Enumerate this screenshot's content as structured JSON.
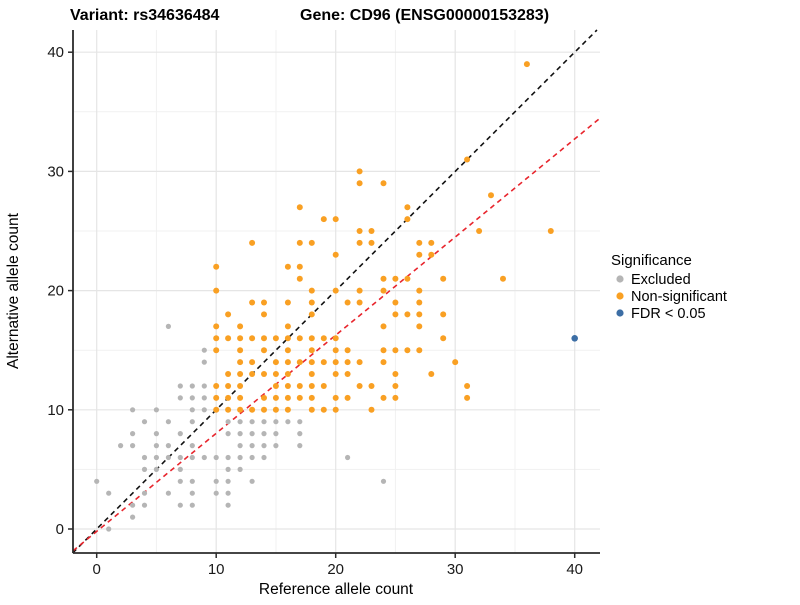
{
  "header": {
    "variant_title": "Variant: rs34636484",
    "gene_title": "Gene: CD96 (ENSG00000153283)"
  },
  "axes": {
    "x": {
      "label": "Reference allele count",
      "ticks": [
        0,
        10,
        20,
        30,
        40
      ]
    },
    "y": {
      "label": "Alternative allele count",
      "ticks": [
        0,
        10,
        20,
        30,
        40
      ]
    }
  },
  "legend": {
    "title": "Significance",
    "items": [
      {
        "label": "Excluded",
        "color": "#b5b5b5"
      },
      {
        "label": "Non-significant",
        "color": "#f9a023"
      },
      {
        "label": "FDR < 0.05",
        "color": "#3c6ea5"
      }
    ]
  },
  "chart_data": {
    "type": "scatter",
    "title": "Variant: rs34636484 / Gene: CD96 (ENSG00000153283)",
    "xlabel": "Reference allele count",
    "ylabel": "Alternative allele count",
    "xlim": [
      -2,
      42.1
    ],
    "ylim": [
      -2,
      41.9
    ],
    "grid": true,
    "minor_grid": [
      5,
      15,
      25,
      35
    ],
    "legend_position": "right",
    "series": [
      {
        "name": "Excluded",
        "color": "#b5b5b5",
        "points": [
          [
            6,
            17
          ],
          [
            9,
            15
          ],
          [
            9,
            14
          ],
          [
            7,
            12
          ],
          [
            8,
            12
          ],
          [
            9,
            12
          ],
          [
            7,
            11
          ],
          [
            8,
            11
          ],
          [
            9,
            11
          ],
          [
            3,
            10
          ],
          [
            5,
            10
          ],
          [
            8,
            10
          ],
          [
            9,
            10
          ],
          [
            4,
            9
          ],
          [
            6,
            9
          ],
          [
            8,
            9
          ],
          [
            11,
            9
          ],
          [
            12,
            9
          ],
          [
            13,
            9
          ],
          [
            14,
            9
          ],
          [
            15,
            9
          ],
          [
            16,
            9
          ],
          [
            17,
            9
          ],
          [
            3,
            8
          ],
          [
            5,
            8
          ],
          [
            7,
            8
          ],
          [
            11,
            8
          ],
          [
            12,
            8
          ],
          [
            13,
            8
          ],
          [
            14,
            8
          ],
          [
            15,
            8
          ],
          [
            17,
            8
          ],
          [
            2,
            7
          ],
          [
            3,
            7
          ],
          [
            5,
            7
          ],
          [
            6,
            7
          ],
          [
            8,
            7
          ],
          [
            12,
            7
          ],
          [
            13,
            7
          ],
          [
            14,
            7
          ],
          [
            15,
            7
          ],
          [
            17,
            7
          ],
          [
            4,
            6
          ],
          [
            5,
            6
          ],
          [
            6,
            6
          ],
          [
            7,
            6
          ],
          [
            8,
            6
          ],
          [
            9,
            6
          ],
          [
            10,
            6
          ],
          [
            11,
            6
          ],
          [
            12,
            6
          ],
          [
            13,
            6
          ],
          [
            14,
            6
          ],
          [
            21,
            6
          ],
          [
            4,
            5
          ],
          [
            5,
            5
          ],
          [
            7,
            5
          ],
          [
            11,
            5
          ],
          [
            12,
            5
          ],
          [
            0,
            4
          ],
          [
            7,
            4
          ],
          [
            8,
            4
          ],
          [
            10,
            4
          ],
          [
            11,
            4
          ],
          [
            13,
            4
          ],
          [
            24,
            4
          ],
          [
            1,
            3
          ],
          [
            4,
            3
          ],
          [
            6,
            3
          ],
          [
            8,
            3
          ],
          [
            10,
            3
          ],
          [
            11,
            3
          ],
          [
            3,
            2
          ],
          [
            4,
            2
          ],
          [
            7,
            2
          ],
          [
            8,
            2
          ],
          [
            11,
            2
          ],
          [
            3,
            1
          ],
          [
            1,
            0
          ]
        ]
      },
      {
        "name": "Non-significant",
        "color": "#f9a023",
        "points": [
          [
            36,
            39
          ],
          [
            31,
            31
          ],
          [
            22,
            30
          ],
          [
            22,
            29
          ],
          [
            24,
            29
          ],
          [
            33,
            28
          ],
          [
            17,
            27
          ],
          [
            26,
            27
          ],
          [
            19,
            26
          ],
          [
            20,
            26
          ],
          [
            26,
            26
          ],
          [
            22,
            25
          ],
          [
            23,
            25
          ],
          [
            32,
            25
          ],
          [
            38,
            25
          ],
          [
            13,
            24
          ],
          [
            17,
            24
          ],
          [
            18,
            24
          ],
          [
            22,
            24
          ],
          [
            23,
            24
          ],
          [
            27,
            24
          ],
          [
            28,
            24
          ],
          [
            20,
            23
          ],
          [
            27,
            23
          ],
          [
            28,
            23
          ],
          [
            10,
            22
          ],
          [
            16,
            22
          ],
          [
            17,
            22
          ],
          [
            17,
            21
          ],
          [
            24,
            21
          ],
          [
            25,
            21
          ],
          [
            26,
            21
          ],
          [
            29,
            21
          ],
          [
            34,
            21
          ],
          [
            10,
            20
          ],
          [
            18,
            20
          ],
          [
            20,
            20
          ],
          [
            22,
            20
          ],
          [
            24,
            20
          ],
          [
            27,
            20
          ],
          [
            13,
            19
          ],
          [
            14,
            19
          ],
          [
            16,
            19
          ],
          [
            18,
            19
          ],
          [
            21,
            19
          ],
          [
            22,
            19
          ],
          [
            25,
            19
          ],
          [
            27,
            19
          ],
          [
            11,
            18
          ],
          [
            14,
            18
          ],
          [
            18,
            18
          ],
          [
            25,
            18
          ],
          [
            26,
            18
          ],
          [
            27,
            18
          ],
          [
            29,
            18
          ],
          [
            10,
            17
          ],
          [
            12,
            17
          ],
          [
            16,
            17
          ],
          [
            24,
            17
          ],
          [
            27,
            17
          ],
          [
            10,
            16
          ],
          [
            11,
            16
          ],
          [
            12,
            16
          ],
          [
            13,
            16
          ],
          [
            14,
            16
          ],
          [
            15,
            16
          ],
          [
            16,
            16
          ],
          [
            17,
            16
          ],
          [
            18,
            16
          ],
          [
            19,
            16
          ],
          [
            20,
            16
          ],
          [
            29,
            16
          ],
          [
            10,
            15
          ],
          [
            12,
            15
          ],
          [
            14,
            15
          ],
          [
            16,
            15
          ],
          [
            18,
            15
          ],
          [
            20,
            15
          ],
          [
            21,
            15
          ],
          [
            24,
            15
          ],
          [
            25,
            15
          ],
          [
            26,
            15
          ],
          [
            27,
            15
          ],
          [
            12,
            14
          ],
          [
            13,
            14
          ],
          [
            15,
            14
          ],
          [
            16,
            14
          ],
          [
            17,
            14
          ],
          [
            18,
            14
          ],
          [
            19,
            14
          ],
          [
            20,
            14
          ],
          [
            21,
            14
          ],
          [
            22,
            14
          ],
          [
            24,
            14
          ],
          [
            30,
            14
          ],
          [
            11,
            13
          ],
          [
            12,
            13
          ],
          [
            13,
            13
          ],
          [
            14,
            13
          ],
          [
            15,
            13
          ],
          [
            16,
            13
          ],
          [
            18,
            13
          ],
          [
            20,
            13
          ],
          [
            21,
            13
          ],
          [
            25,
            13
          ],
          [
            28,
            13
          ],
          [
            10,
            12
          ],
          [
            11,
            12
          ],
          [
            12,
            12
          ],
          [
            15,
            12
          ],
          [
            16,
            12
          ],
          [
            17,
            12
          ],
          [
            18,
            12
          ],
          [
            19,
            12
          ],
          [
            22,
            12
          ],
          [
            23,
            12
          ],
          [
            25,
            12
          ],
          [
            31,
            12
          ],
          [
            10,
            11
          ],
          [
            11,
            11
          ],
          [
            12,
            11
          ],
          [
            14,
            11
          ],
          [
            15,
            11
          ],
          [
            16,
            11
          ],
          [
            17,
            11
          ],
          [
            18,
            11
          ],
          [
            20,
            11
          ],
          [
            21,
            11
          ],
          [
            24,
            11
          ],
          [
            25,
            11
          ],
          [
            31,
            11
          ],
          [
            10,
            10
          ],
          [
            11,
            10
          ],
          [
            12,
            10
          ],
          [
            13,
            10
          ],
          [
            14,
            10
          ],
          [
            15,
            10
          ],
          [
            16,
            10
          ],
          [
            18,
            10
          ],
          [
            19,
            10
          ],
          [
            20,
            10
          ],
          [
            23,
            10
          ]
        ]
      },
      {
        "name": "FDR < 0.05",
        "color": "#3c6ea5",
        "points": [
          [
            40,
            16
          ]
        ]
      }
    ],
    "lines": [
      {
        "name": "identity-line",
        "slope": 1,
        "intercept": 0,
        "color": "#111111",
        "style": "dashed"
      },
      {
        "name": "expected-ratio-line",
        "slope": 0.823,
        "intercept": -0.2,
        "color": "#e8252d",
        "style": "dashed"
      }
    ]
  }
}
